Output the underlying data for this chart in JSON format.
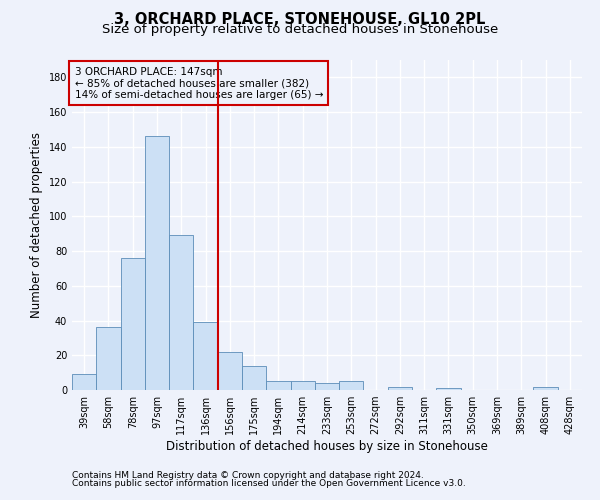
{
  "title": "3, ORCHARD PLACE, STONEHOUSE, GL10 2PL",
  "subtitle": "Size of property relative to detached houses in Stonehouse",
  "xlabel": "Distribution of detached houses by size in Stonehouse",
  "ylabel": "Number of detached properties",
  "categories": [
    "39sqm",
    "58sqm",
    "78sqm",
    "97sqm",
    "117sqm",
    "136sqm",
    "156sqm",
    "175sqm",
    "194sqm",
    "214sqm",
    "233sqm",
    "253sqm",
    "272sqm",
    "292sqm",
    "311sqm",
    "331sqm",
    "350sqm",
    "369sqm",
    "389sqm",
    "408sqm",
    "428sqm"
  ],
  "values": [
    9,
    36,
    76,
    146,
    89,
    39,
    22,
    14,
    5,
    5,
    4,
    5,
    0,
    2,
    0,
    1,
    0,
    0,
    0,
    2,
    0
  ],
  "bar_color": "#cce0f5",
  "bar_edge_color": "#5b8db8",
  "vline_x_index": 5.5,
  "vline_color": "#cc0000",
  "annotation_line1": "3 ORCHARD PLACE: 147sqm",
  "annotation_line2": "← 85% of detached houses are smaller (382)",
  "annotation_line3": "14% of semi-detached houses are larger (65) →",
  "annotation_box_color": "#cc0000",
  "ylim": [
    0,
    190
  ],
  "yticks": [
    0,
    20,
    40,
    60,
    80,
    100,
    120,
    140,
    160,
    180
  ],
  "background_color": "#eef2fb",
  "grid_color": "#ffffff",
  "footnote1": "Contains HM Land Registry data © Crown copyright and database right 2024.",
  "footnote2": "Contains public sector information licensed under the Open Government Licence v3.0.",
  "title_fontsize": 10.5,
  "subtitle_fontsize": 9.5,
  "xlabel_fontsize": 8.5,
  "ylabel_fontsize": 8.5,
  "tick_fontsize": 7,
  "annot_fontsize": 7.5,
  "footnote_fontsize": 6.5
}
